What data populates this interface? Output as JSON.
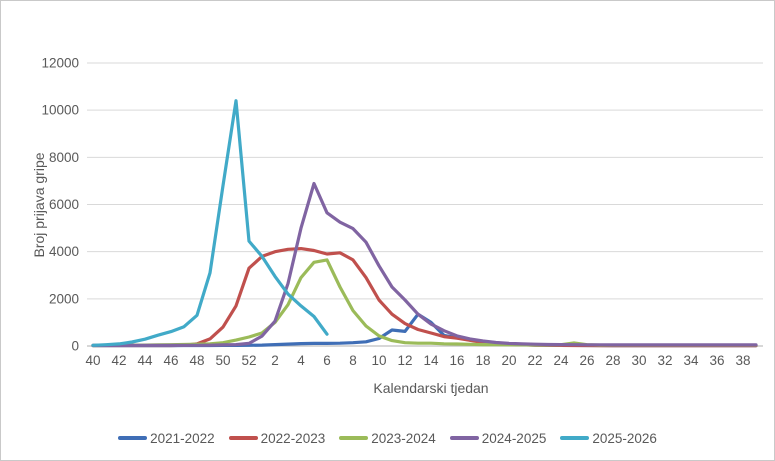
{
  "chart_data": {
    "type": "line",
    "title": "",
    "xlabel": "Kalendarski tjedan",
    "ylabel": "Broj prijava gripe",
    "x_categories": [
      "40",
      "41",
      "42",
      "43",
      "44",
      "45",
      "46",
      "47",
      "48",
      "49",
      "50",
      "51",
      "52",
      "1",
      "2",
      "3",
      "4",
      "5",
      "6",
      "7",
      "8",
      "9",
      "10",
      "11",
      "12",
      "13",
      "14",
      "15",
      "16",
      "17",
      "18",
      "19",
      "20",
      "21",
      "22",
      "23",
      "24",
      "25",
      "26",
      "27",
      "28",
      "29",
      "30",
      "31",
      "32",
      "33",
      "34",
      "35",
      "36",
      "37",
      "38",
      "39"
    ],
    "x_tick_step": 2,
    "ylim": [
      0,
      12000
    ],
    "y_tick_interval": 2000,
    "y_tick_labels": [
      "0",
      "2000",
      "4000",
      "6000",
      "8000",
      "10000",
      "12000"
    ],
    "grid": "horizontal",
    "gridline_color": "#d9d9d9",
    "axis_line_color": "#bfbfbf",
    "text_color": "#595959",
    "legend_position": "bottom",
    "series": [
      {
        "name": "2021-2022",
        "color": "#3f6eb6",
        "values": [
          15,
          15,
          15,
          15,
          15,
          15,
          15,
          20,
          20,
          20,
          25,
          25,
          30,
          40,
          60,
          80,
          100,
          110,
          110,
          120,
          140,
          180,
          320,
          680,
          620,
          1350,
          1000,
          450,
          350,
          250,
          190,
          140,
          90,
          60,
          40,
          30,
          25,
          25,
          20,
          20,
          15,
          15,
          15,
          15,
          15,
          15,
          15,
          15,
          15,
          15,
          15,
          15
        ]
      },
      {
        "name": "2022-2023",
        "color": "#c0504d",
        "values": [
          20,
          20,
          20,
          20,
          20,
          20,
          20,
          30,
          90,
          300,
          800,
          1700,
          3300,
          3800,
          4000,
          4100,
          4130,
          4050,
          3900,
          3950,
          3650,
          2900,
          1950,
          1350,
          950,
          700,
          550,
          400,
          330,
          240,
          150,
          100,
          70,
          50,
          40,
          30,
          25,
          20,
          20,
          15,
          15,
          15,
          15,
          15,
          15,
          15,
          15,
          15,
          15,
          15,
          15,
          15
        ]
      },
      {
        "name": "2023-2024",
        "color": "#9bbb59",
        "values": [
          20,
          25,
          30,
          35,
          40,
          45,
          55,
          65,
          75,
          90,
          140,
          250,
          380,
          550,
          1000,
          1750,
          2900,
          3550,
          3650,
          2500,
          1500,
          850,
          430,
          230,
          140,
          120,
          120,
          95,
          85,
          70,
          60,
          55,
          50,
          45,
          45,
          45,
          55,
          130,
          55,
          40,
          35,
          35,
          35,
          35,
          35,
          35,
          35,
          35,
          35,
          35,
          35,
          35
        ]
      },
      {
        "name": "2024-2025",
        "color": "#8064a2",
        "values": [
          25,
          25,
          25,
          25,
          25,
          25,
          25,
          25,
          30,
          35,
          45,
          60,
          110,
          420,
          1050,
          2650,
          5000,
          6890,
          5650,
          5250,
          4980,
          4400,
          3400,
          2500,
          1950,
          1350,
          930,
          650,
          430,
          300,
          210,
          150,
          110,
          90,
          75,
          65,
          60,
          55,
          50,
          50,
          45,
          45,
          45,
          45,
          45,
          45,
          45,
          45,
          45,
          45,
          45,
          45
        ]
      },
      {
        "name": "2025-2026",
        "color": "#41aac8",
        "values": [
          30,
          55,
          90,
          170,
          290,
          460,
          610,
          820,
          1300,
          3100,
          6800,
          10400,
          4450,
          3800,
          2950,
          2200,
          1700,
          1250,
          500,
          null,
          null,
          null,
          null,
          null,
          null,
          null,
          null,
          null,
          null,
          null,
          null,
          null,
          null,
          null,
          null,
          null,
          null,
          null,
          null,
          null,
          null,
          null,
          null,
          null,
          null,
          null,
          null,
          null,
          null,
          null,
          null,
          null
        ]
      }
    ]
  }
}
